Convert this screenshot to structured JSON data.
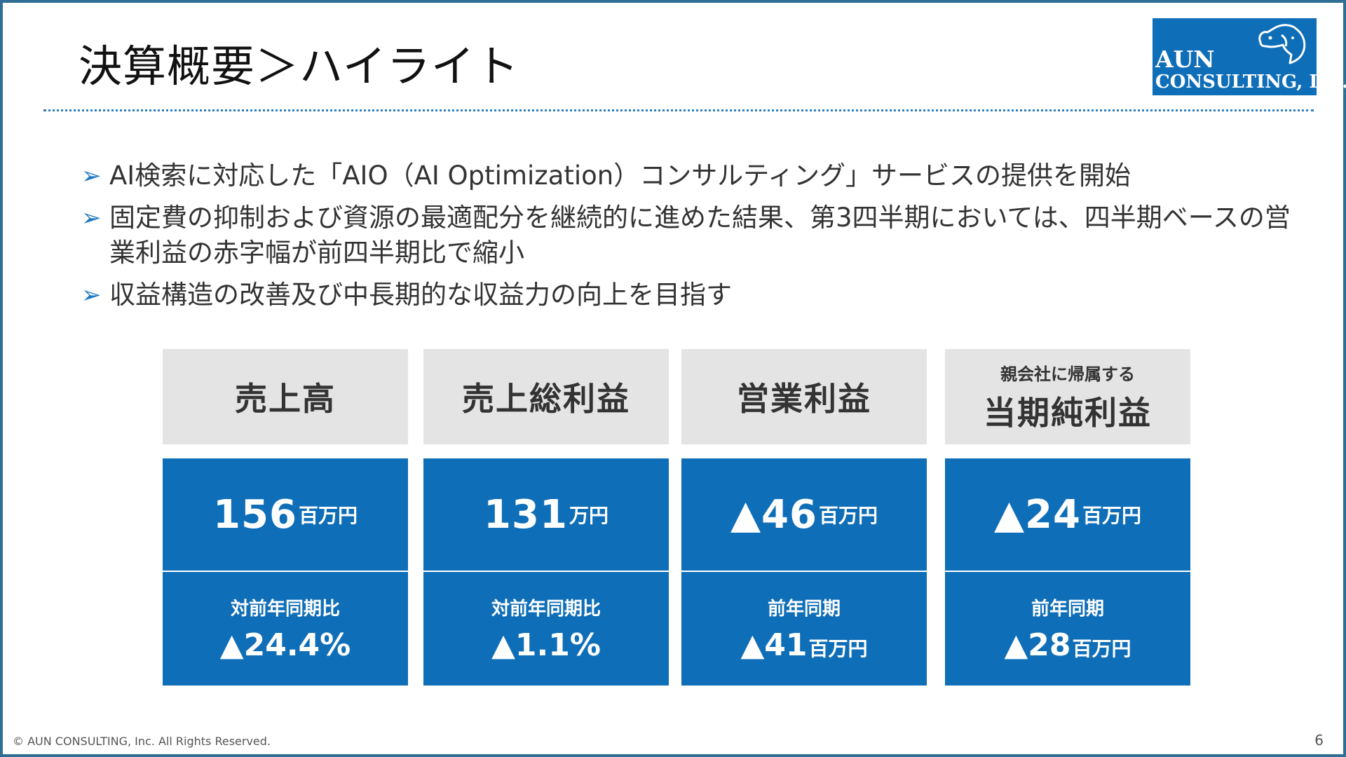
{
  "title": "決算概要＞ハイライト",
  "logo": {
    "line1": "AUN",
    "line2": "CONSULTING, Inc.",
    "icon": "dog-head-icon"
  },
  "bullets": [
    "AI検索に対応した「AIO（AI Optimization）コンサルティング」サービスの提供を開始",
    "固定費の抑制および資源の最適配分を継続的に進めた結果、第3四半期においては、四半期ベースの営業利益の赤字幅が前四半期比で縮小",
    "収益構造の改善及び中長期的な収益力の向上を目指す"
  ],
  "bullet_marker": "➢",
  "cards": [
    {
      "sub": "",
      "title": "売上高",
      "value": "156",
      "value_unit": "百万円",
      "cmp_label": "対前年同期比",
      "cmp_value": "▲24.4%",
      "cmp_unit": ""
    },
    {
      "sub": "",
      "title": "売上総利益",
      "value": "131",
      "value_unit": "万円",
      "cmp_label": "対前年同期比",
      "cmp_value": "▲1.1%",
      "cmp_unit": ""
    },
    {
      "sub": "",
      "title": "営業利益",
      "value": "▲46",
      "value_unit": "百万円",
      "cmp_label": "前年同期",
      "cmp_value": "▲41",
      "cmp_unit": "百万円"
    },
    {
      "sub": "親会社に帰属する",
      "title": "当期純利益",
      "value": "▲24",
      "value_unit": "百万円",
      "cmp_label": "前年同期",
      "cmp_value": "▲28",
      "cmp_unit": "百万円"
    }
  ],
  "footer": {
    "copyright": "© AUN CONSULTING, Inc. All Rights Reserved.",
    "page": "6"
  },
  "colors": {
    "accent": "#0f6eb8",
    "frame": "#2f6f96",
    "card_head_bg": "#e4e4e4"
  }
}
